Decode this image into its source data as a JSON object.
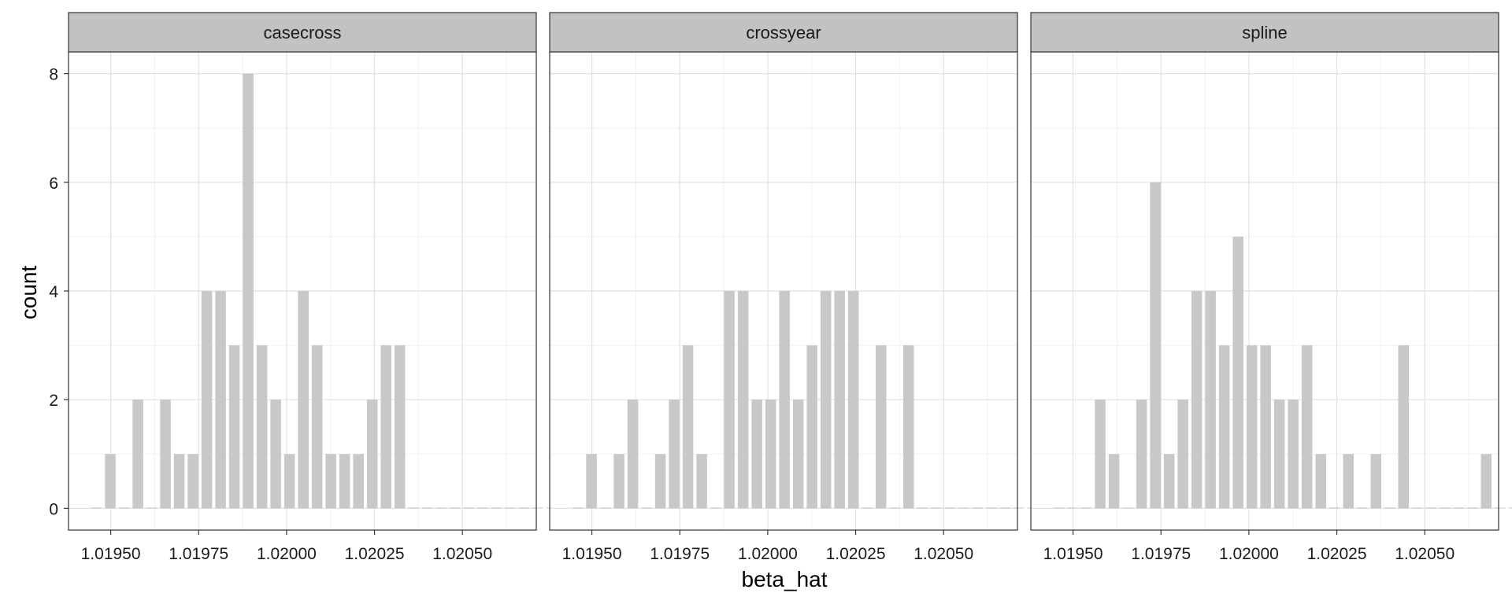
{
  "chart_data": {
    "type": "bar",
    "xlabel": "beta_hat",
    "ylabel": "count",
    "xlim": [
      1.01938,
      1.02071
    ],
    "ylim": [
      -0.4,
      8.4
    ],
    "x_ticks": [
      1.0195,
      1.01975,
      1.02,
      1.02025,
      1.0205
    ],
    "x_tick_labels": [
      "1.01950",
      "1.01975",
      "1.02000",
      "1.02025",
      "1.02050"
    ],
    "y_ticks": [
      0,
      2,
      4,
      6,
      8
    ],
    "y_tick_labels": [
      "0",
      "2",
      "4",
      "6",
      "8"
    ],
    "grid": true,
    "bin_start": 1.01944,
    "bin_width": 3.92e-05,
    "fill_color": "#c8c8c8",
    "panels": [
      {
        "name": "casecross",
        "values": [
          0,
          1,
          0,
          2,
          0,
          2,
          1,
          1,
          4,
          4,
          3,
          8,
          3,
          2,
          1,
          4,
          3,
          1,
          1,
          1,
          2,
          3,
          3,
          0,
          0,
          0,
          0,
          0,
          0,
          0,
          0,
          0,
          0,
          0
        ]
      },
      {
        "name": "crossyear",
        "values": [
          0,
          1,
          0,
          1,
          2,
          0,
          1,
          2,
          3,
          1,
          0,
          4,
          4,
          2,
          2,
          4,
          2,
          3,
          4,
          4,
          4,
          0,
          3,
          0,
          3,
          0,
          0,
          0,
          0,
          0,
          0,
          0,
          0,
          0
        ]
      },
      {
        "name": "spline",
        "values": [
          0,
          0,
          0,
          2,
          1,
          0,
          2,
          6,
          1,
          2,
          4,
          4,
          3,
          5,
          3,
          3,
          2,
          2,
          3,
          1,
          0,
          1,
          0,
          1,
          0,
          3,
          0,
          0,
          0,
          0,
          0,
          1,
          0,
          0
        ]
      }
    ]
  }
}
